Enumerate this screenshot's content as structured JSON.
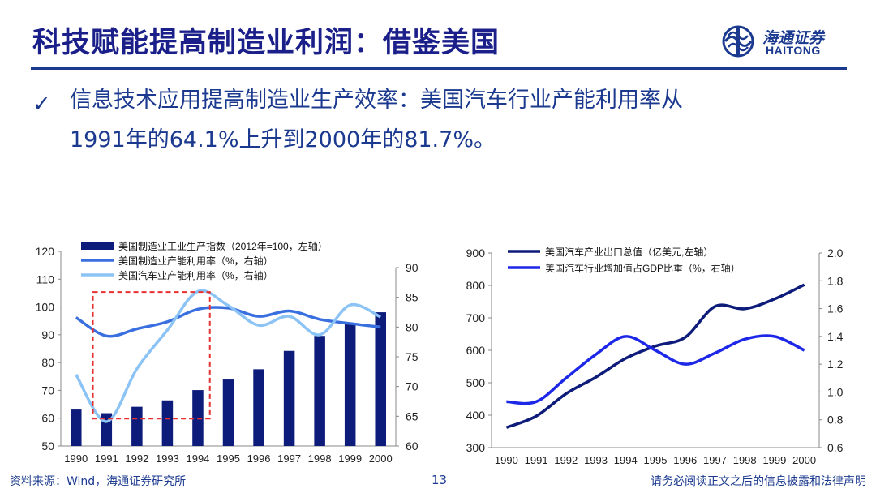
{
  "header": {
    "title": "科技赋能提高制造业利润：借鉴美国",
    "logo_cn": "海通证券",
    "logo_en": "HAITONG"
  },
  "bullet": {
    "mark": "✓",
    "line1": "信息技术应用提高制造业生产效率：美国汽车行业产能利用率从",
    "line2": "1991年的64.1%上升到2000年的81.7%。"
  },
  "footer": {
    "source": "资料来源：Wind，海通证券研究所",
    "page": "13",
    "disclaimer": "请务必阅读正文之后的信息披露和法律声明"
  },
  "colors": {
    "title": "#1b1f8a",
    "bar": "#0d1b7a",
    "line_mid": "#3a6fe0",
    "line_light": "#8cc3f5",
    "highlight_box": "#e83030",
    "export": "#0d1b7a",
    "share": "#1c27e8"
  },
  "chart_data": [
    {
      "type": "bar+line",
      "categories": [
        "1990",
        "1991",
        "1992",
        "1993",
        "1994",
        "1995",
        "1996",
        "1997",
        "1998",
        "1999",
        "2000"
      ],
      "series": [
        {
          "name": "美国制造业工业生产指数（2012年=100，左轴）",
          "type": "bar",
          "axis": "left",
          "values": [
            63.1,
            61.8,
            64.1,
            66.4,
            70.1,
            73.9,
            77.6,
            84.2,
            89.6,
            94.0,
            98.1
          ]
        },
        {
          "name": "美国制造业产能利用率（%，右轴）",
          "type": "line",
          "axis": "right",
          "values": [
            81.6,
            78.5,
            79.7,
            80.9,
            83.0,
            83.2,
            81.8,
            82.7,
            81.3,
            80.6,
            80.0
          ]
        },
        {
          "name": "美国汽车业产能利用率（%，右轴）",
          "type": "line",
          "axis": "right",
          "values": [
            72.0,
            64.1,
            73.0,
            79.5,
            86.0,
            83.6,
            80.3,
            81.8,
            78.7,
            83.7,
            81.7
          ]
        }
      ],
      "yleft": {
        "min": 50,
        "max": 120,
        "ticks": [
          "50",
          "60",
          "70",
          "80",
          "90",
          "100",
          "110",
          "120"
        ]
      },
      "yright": {
        "min": 60,
        "max": 90,
        "ticks": [
          "60",
          "65",
          "70",
          "75",
          "80",
          "85",
          "90"
        ]
      },
      "highlight": {
        "from": "1991",
        "to": "1994"
      }
    },
    {
      "type": "line",
      "categories": [
        "1990",
        "1991",
        "1992",
        "1993",
        "1994",
        "1995",
        "1996",
        "1997",
        "1998",
        "1999",
        "2000"
      ],
      "series": [
        {
          "name": "美国汽车产业出口总值（亿美元,左轴）",
          "axis": "left",
          "values": [
            362,
            397,
            466,
            517,
            575,
            613,
            640,
            735,
            728,
            758,
            802
          ]
        },
        {
          "name": "美国汽车行业增加值占GDP比重（%，右轴）",
          "axis": "right",
          "values": [
            0.93,
            0.93,
            1.1,
            1.27,
            1.4,
            1.3,
            1.2,
            1.28,
            1.38,
            1.4,
            1.3
          ]
        }
      ],
      "yleft": {
        "min": 300,
        "max": 900,
        "ticks": [
          "300",
          "400",
          "500",
          "600",
          "700",
          "800",
          "900"
        ]
      },
      "yright": {
        "min": 0.6,
        "max": 2.0,
        "ticks": [
          "0.6",
          "0.8",
          "1.0",
          "1.2",
          "1.4",
          "1.6",
          "1.8",
          "2.0"
        ]
      }
    }
  ]
}
